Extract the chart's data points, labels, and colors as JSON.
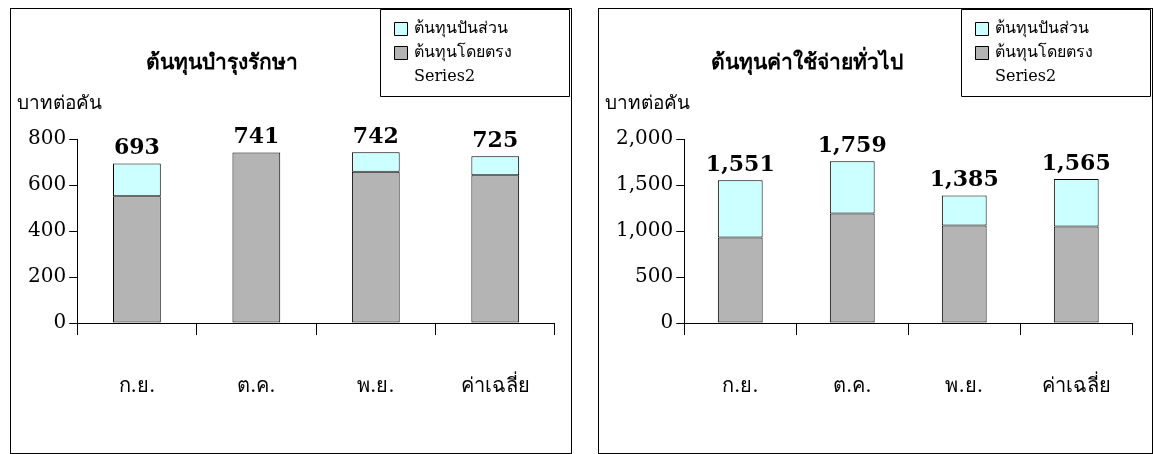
{
  "chart_data": [
    {
      "type": "bar",
      "title": "ต้นทุนบำรุงรักษา",
      "ylabel": "บาทต่อคัน",
      "categories": [
        "ก.ย.",
        "ต.ค.",
        "พ.ย.",
        "ค่าเฉลี่ย"
      ],
      "stacked": true,
      "series": [
        {
          "name": "ต้นทุนโดยตรง",
          "color": "#b4b4b4",
          "values": [
            551,
            741,
            658,
            642
          ]
        },
        {
          "name": "ต้นทุนปันส่วน",
          "color": "#ccffff",
          "values": [
            142,
            0,
            84,
            83
          ]
        }
      ],
      "annotations": [
        "Series2"
      ],
      "totals": [
        "693",
        "741",
        "742",
        "725"
      ],
      "ylim": [
        0,
        800
      ],
      "yticks": [
        0,
        200,
        400,
        600,
        800
      ],
      "grid": false,
      "legend": "top right"
    },
    {
      "type": "bar",
      "title": "ต้นทุนค่าใช้จ่ายทั่วไป",
      "ylabel": "บาทต่อคัน",
      "categories": [
        "ก.ย.",
        "ต.ค.",
        "พ.ย.",
        "ค่าเฉลี่ย"
      ],
      "stacked": true,
      "series": [
        {
          "name": "ต้นทุนโดยตรง",
          "color": "#b4b4b4",
          "values": [
            930,
            1190,
            1060,
            1050
          ]
        },
        {
          "name": "ต้นทุนปันส่วน",
          "color": "#ccffff",
          "values": [
            621,
            569,
            325,
            515
          ]
        }
      ],
      "annotations": [
        "Series2"
      ],
      "totals": [
        "1,551",
        "1,759",
        "1,385",
        "1,565"
      ],
      "ylim": [
        0,
        2000
      ],
      "yticks": [
        0,
        {
          "value": 500,
          "label": "500"
        },
        {
          "value": 1000,
          "label": "1,000"
        },
        {
          "value": 1500,
          "label": "1,500"
        },
        {
          "value": 2000,
          "label": "2,000"
        }
      ],
      "grid": false,
      "legend": "top right"
    }
  ]
}
